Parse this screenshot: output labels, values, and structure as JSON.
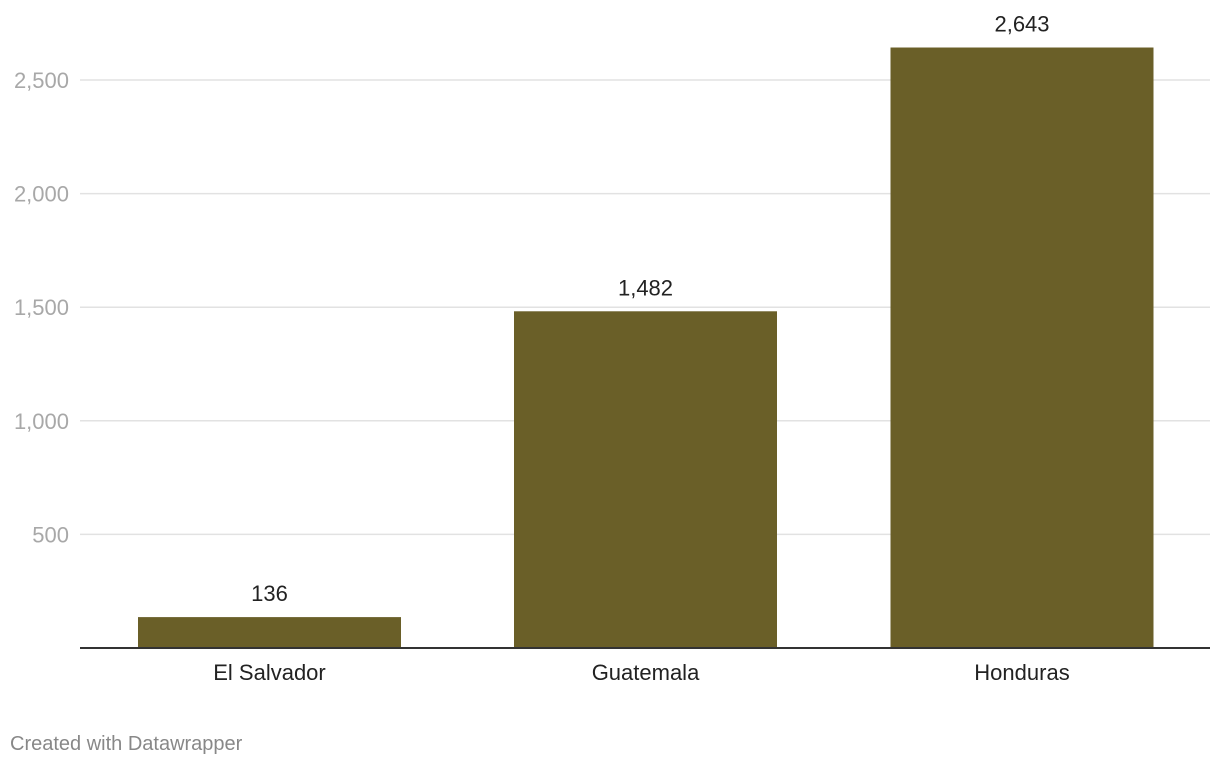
{
  "chart_data": {
    "type": "bar",
    "categories": [
      "El Salvador",
      "Guatemala",
      "Honduras"
    ],
    "values": [
      136,
      1482,
      2643
    ],
    "value_labels": [
      "136",
      "1,482",
      "2,643"
    ],
    "title": "",
    "xlabel": "",
    "ylabel": "",
    "ylim": [
      0,
      2800
    ],
    "yticks": [
      500,
      1000,
      1500,
      2000,
      2500
    ],
    "ytick_labels": [
      "500",
      "1,000",
      "1,500",
      "2,000",
      "2,500"
    ],
    "grid": true,
    "legend": "none"
  },
  "colors": {
    "bar": "#6a5f28",
    "grid": "#e2e2e2",
    "axis": "#333333",
    "tick_label": "#a8a8a8",
    "label": "#222222",
    "credit": "#888888"
  },
  "credit": "Created with Datawrapper"
}
